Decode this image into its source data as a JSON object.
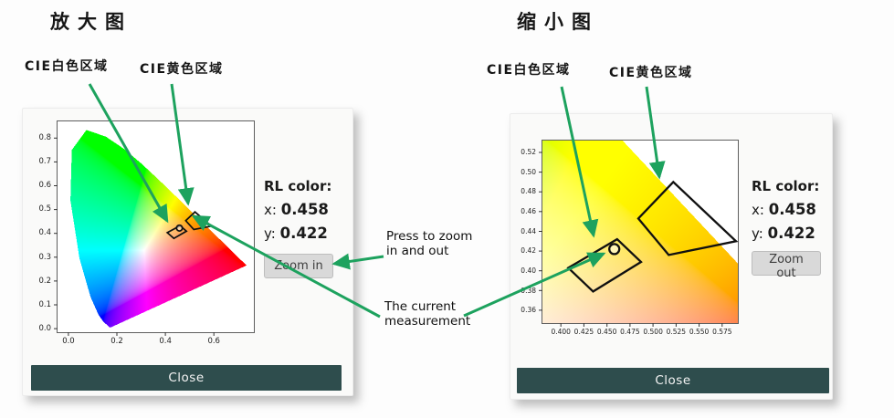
{
  "titles": {
    "left": "放大图",
    "right": "缩小图"
  },
  "annotations": {
    "left_white": "CIE白色区域",
    "left_yellow": "CIE黄色区域",
    "right_white": "CIE白色区域",
    "right_yellow": "CIE黄色区域",
    "zoom_note": "Press to zoom in and out",
    "measure_note": "The current measurement"
  },
  "left_panel": {
    "rl_title": "RL color:",
    "x_label": "x:",
    "x_value": "0.458",
    "y_label": "y:",
    "y_value": "0.422",
    "zoom_button": "Zoom in",
    "close_button": "Close"
  },
  "right_panel": {
    "rl_title": "RL color:",
    "x_label": "x:",
    "x_value": "0.458",
    "y_label": "y:",
    "y_value": "0.422",
    "zoom_button": "Zoom out",
    "close_button": "Close"
  },
  "colors": {
    "arrow_green": "#1da25e",
    "close_bg": "#2e4d4d",
    "close_text": "#f5f5f5",
    "zoom_btn_bg": "#d9d9d9",
    "region_outline": "#101010",
    "panel_bg": "#fafaf9"
  },
  "chart_data": [
    {
      "type": "heatmap",
      "subtype": "cie-1931-chromaticity-diagram",
      "view": "full",
      "render": "normalize",
      "xlim": [
        -0.045,
        0.765
      ],
      "ylim": [
        -0.015,
        0.87
      ],
      "xticks": [
        {
          "v": 0.0,
          "label": "0.0"
        },
        {
          "v": 0.2,
          "label": "0.2"
        },
        {
          "v": 0.4,
          "label": "0.4"
        },
        {
          "v": 0.6,
          "label": "0.6"
        }
      ],
      "yticks": [
        {
          "v": 0.0,
          "label": "0.0"
        },
        {
          "v": 0.1,
          "label": "0.1"
        },
        {
          "v": 0.2,
          "label": "0.2"
        },
        {
          "v": 0.3,
          "label": "0.3"
        },
        {
          "v": 0.4,
          "label": "0.4"
        },
        {
          "v": 0.5,
          "label": "0.5"
        },
        {
          "v": 0.6,
          "label": "0.6"
        },
        {
          "v": 0.7,
          "label": "0.7"
        },
        {
          "v": 0.8,
          "label": "0.8"
        }
      ],
      "regions": {
        "white": [
          [
            0.408,
            0.403
          ],
          [
            0.461,
            0.432
          ],
          [
            0.487,
            0.409
          ],
          [
            0.435,
            0.379
          ]
        ],
        "yellow": [
          [
            0.484,
            0.453
          ],
          [
            0.522,
            0.49
          ],
          [
            0.59,
            0.43
          ],
          [
            0.517,
            0.416
          ]
        ]
      },
      "marker": {
        "x": 0.458,
        "y": 0.422,
        "r": 3.2
      },
      "line_w": 1.7,
      "tick_font": 8.5
    },
    {
      "type": "heatmap",
      "subtype": "cie-1931-chromaticity-diagram",
      "view": "zoomed",
      "render": "clip",
      "xlim": [
        0.38,
        0.592
      ],
      "ylim": [
        0.347,
        0.532
      ],
      "xticks": [
        {
          "v": 0.4,
          "label": "0.400"
        },
        {
          "v": 0.425,
          "label": "0.425"
        },
        {
          "v": 0.45,
          "label": "0.450"
        },
        {
          "v": 0.475,
          "label": "0.475"
        },
        {
          "v": 0.5,
          "label": "0.500"
        },
        {
          "v": 0.525,
          "label": "0.525"
        },
        {
          "v": 0.55,
          "label": "0.550"
        },
        {
          "v": 0.575,
          "label": "0.575"
        }
      ],
      "yticks": [
        {
          "v": 0.36,
          "label": "0.36"
        },
        {
          "v": 0.38,
          "label": "0.38"
        },
        {
          "v": 0.4,
          "label": "0.40"
        },
        {
          "v": 0.42,
          "label": "0.42"
        },
        {
          "v": 0.44,
          "label": "0.44"
        },
        {
          "v": 0.46,
          "label": "0.46"
        },
        {
          "v": 0.48,
          "label": "0.48"
        },
        {
          "v": 0.5,
          "label": "0.50"
        },
        {
          "v": 0.52,
          "label": "0.52"
        }
      ],
      "regions": {
        "white": [
          [
            0.408,
            0.403
          ],
          [
            0.461,
            0.432
          ],
          [
            0.487,
            0.409
          ],
          [
            0.435,
            0.379
          ]
        ],
        "yellow": [
          [
            0.484,
            0.453
          ],
          [
            0.522,
            0.49
          ],
          [
            0.59,
            0.43
          ],
          [
            0.517,
            0.416
          ]
        ]
      },
      "marker": {
        "x": 0.458,
        "y": 0.422,
        "r": 5.5
      },
      "line_w": 2.3,
      "tick_font": 7.5
    }
  ],
  "cie_locus": [
    [
      0.1741,
      0.005
    ],
    [
      0.174,
      0.005
    ],
    [
      0.1733,
      0.0048
    ],
    [
      0.1726,
      0.0048
    ],
    [
      0.1714,
      0.0051
    ],
    [
      0.1689,
      0.0069
    ],
    [
      0.1644,
      0.0109
    ],
    [
      0.1566,
      0.0177
    ],
    [
      0.144,
      0.0297
    ],
    [
      0.1241,
      0.0578
    ],
    [
      0.0913,
      0.1327
    ],
    [
      0.0454,
      0.295
    ],
    [
      0.0082,
      0.5384
    ],
    [
      0.0139,
      0.7502
    ],
    [
      0.0743,
      0.8338
    ],
    [
      0.1547,
      0.8059
    ],
    [
      0.2296,
      0.7543
    ],
    [
      0.3016,
      0.6923
    ],
    [
      0.3731,
      0.6245
    ],
    [
      0.4441,
      0.5547
    ],
    [
      0.5125,
      0.4866
    ],
    [
      0.5752,
      0.4242
    ],
    [
      0.627,
      0.3725
    ],
    [
      0.6658,
      0.334
    ],
    [
      0.6915,
      0.3083
    ],
    [
      0.7079,
      0.292
    ],
    [
      0.719,
      0.2809
    ],
    [
      0.726,
      0.274
    ],
    [
      0.73,
      0.27
    ],
    [
      0.732,
      0.268
    ],
    [
      0.7334,
      0.2666
    ],
    [
      0.7344,
      0.2656
    ],
    [
      0.7347,
      0.2653
    ]
  ]
}
